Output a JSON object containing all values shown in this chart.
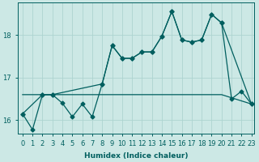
{
  "xlabel": "Humidex (Indice chaleur)",
  "ylabel": "",
  "background_color": "#cce8e5",
  "grid_color": "#add4d0",
  "line_color": "#005f5f",
  "xmin": -0.5,
  "xmax": 23.3,
  "ymin": 15.68,
  "ymax": 18.75,
  "yticks": [
    16,
    17,
    18
  ],
  "xticks": [
    0,
    1,
    2,
    3,
    4,
    5,
    6,
    7,
    8,
    9,
    10,
    11,
    12,
    13,
    14,
    15,
    16,
    17,
    18,
    19,
    20,
    21,
    22,
    23
  ],
  "series1_x": [
    0,
    1,
    2,
    3,
    4,
    5,
    6,
    7,
    8,
    9,
    10,
    11,
    12,
    13,
    14,
    15,
    16,
    17,
    18,
    19,
    20,
    21,
    22,
    23
  ],
  "series1_y": [
    16.15,
    15.78,
    16.6,
    16.6,
    16.4,
    16.08,
    16.38,
    16.08,
    16.85,
    17.75,
    17.45,
    17.45,
    17.6,
    17.6,
    17.97,
    18.55,
    17.88,
    17.83,
    17.88,
    18.48,
    18.28,
    16.5,
    16.68,
    16.38
  ],
  "series2_x": [
    0,
    2,
    3,
    8,
    9,
    10,
    11,
    12,
    13,
    14,
    15,
    16,
    17,
    18,
    19,
    20,
    23
  ],
  "series2_y": [
    16.15,
    16.6,
    16.6,
    16.85,
    17.75,
    17.45,
    17.45,
    17.6,
    17.6,
    17.97,
    18.55,
    17.88,
    17.83,
    17.88,
    18.48,
    18.28,
    16.38
  ],
  "series3_x": [
    0,
    4,
    10,
    20,
    23
  ],
  "series3_y": [
    16.6,
    16.6,
    16.6,
    16.6,
    16.38
  ],
  "marker": "D",
  "marker_size": 2.5,
  "linewidth": 0.9,
  "axis_fontsize": 6.5,
  "tick_fontsize": 6.0
}
